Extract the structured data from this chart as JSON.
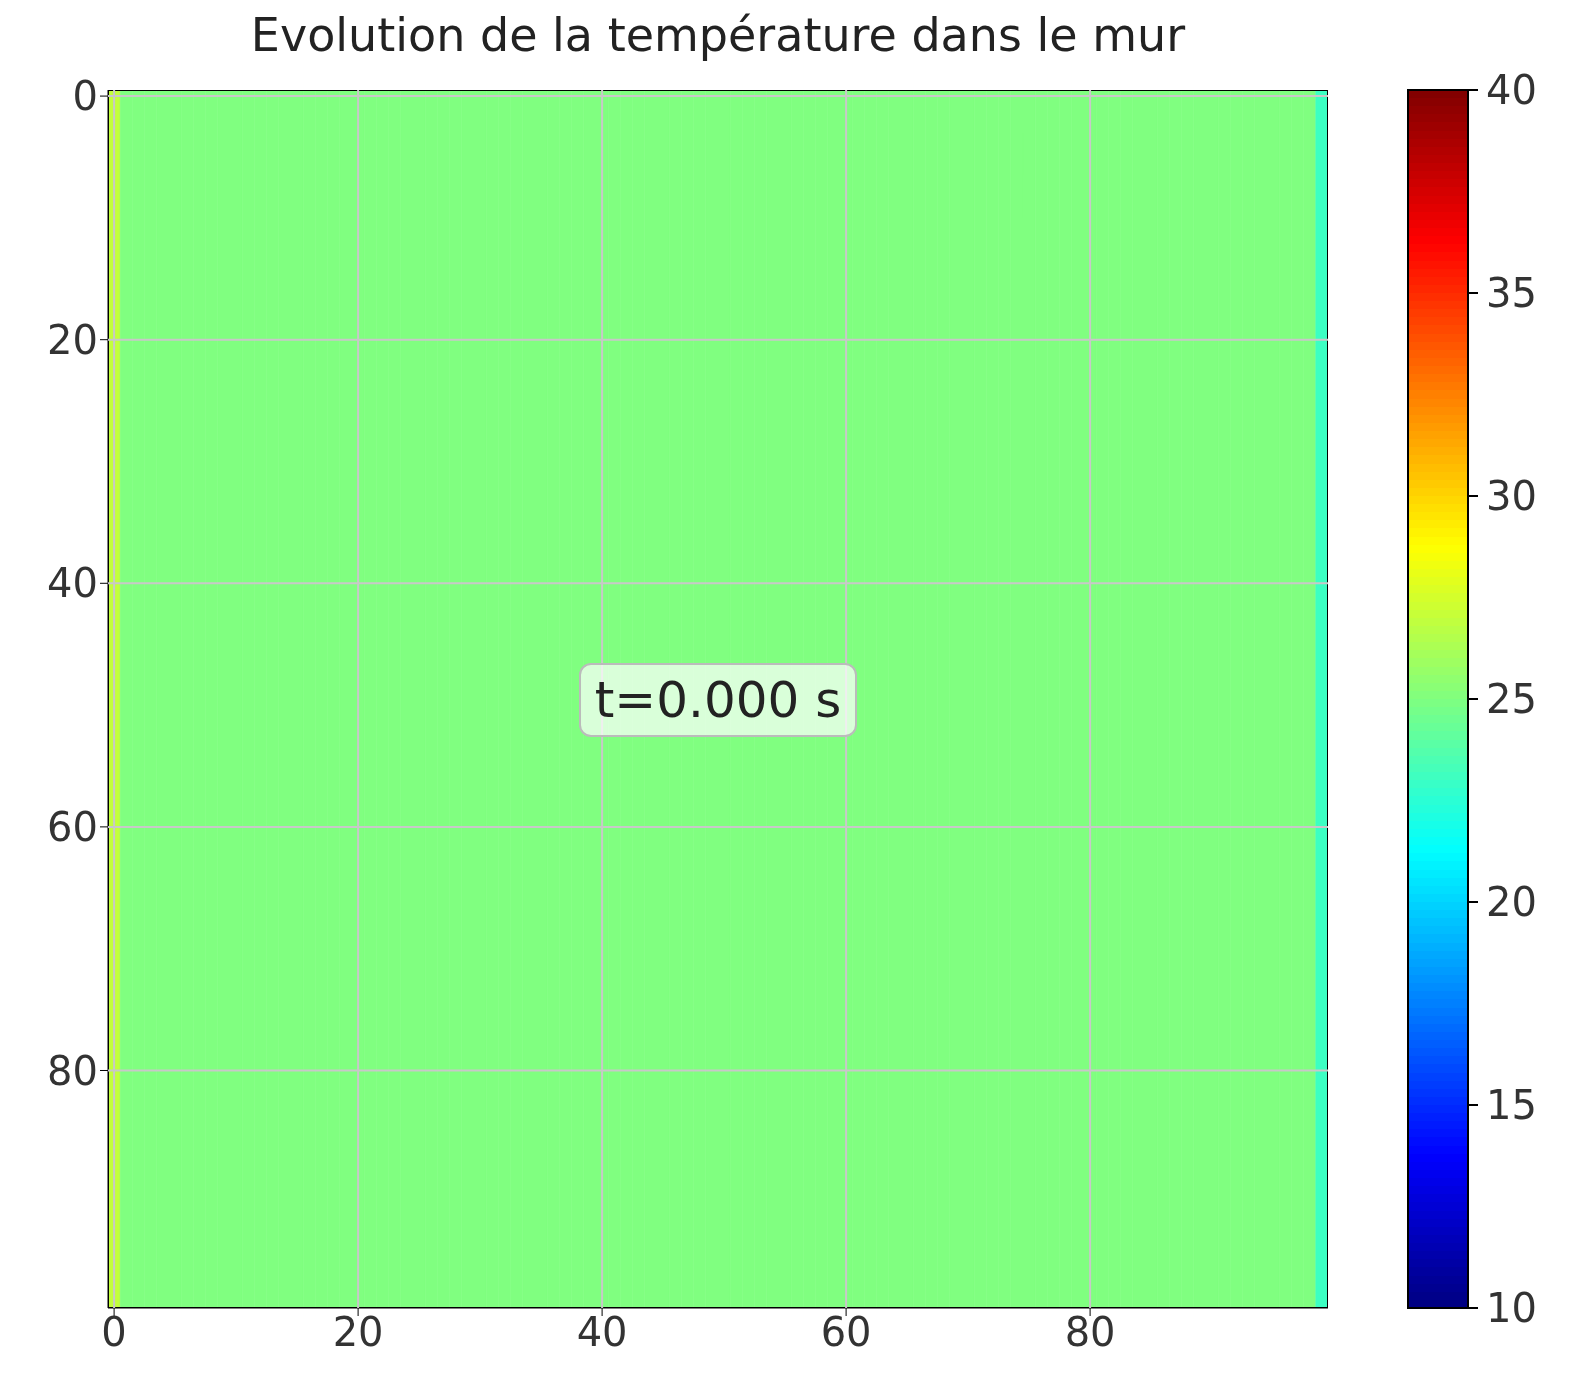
{
  "chart_data": {
    "type": "heatmap",
    "title": "Evolution de la température dans le mur",
    "x": [
      0,
      1,
      2,
      3,
      4,
      5,
      6,
      7,
      8,
      9,
      10,
      11,
      12,
      13,
      14,
      15,
      16,
      17,
      18,
      19,
      20,
      21,
      22,
      23,
      24,
      25,
      26,
      27,
      28,
      29,
      30,
      31,
      32,
      33,
      34,
      35,
      36,
      37,
      38,
      39,
      40,
      41,
      42,
      43,
      44,
      45,
      46,
      47,
      48,
      49,
      50,
      51,
      52,
      53,
      54,
      55,
      56,
      57,
      58,
      59,
      60,
      61,
      62,
      63,
      64,
      65,
      66,
      67,
      68,
      69,
      70,
      71,
      72,
      73,
      74,
      75,
      76,
      77,
      78,
      79,
      80,
      81,
      82,
      83,
      84,
      85,
      86,
      87,
      88,
      89,
      90,
      91,
      92,
      93,
      94,
      95,
      96,
      97,
      98,
      99
    ],
    "cells": [
      [
        27,
        25,
        25,
        25,
        25,
        25,
        25,
        25,
        25,
        25,
        25,
        25,
        25,
        25,
        25,
        25,
        25,
        25,
        25,
        25,
        25,
        25,
        25,
        25,
        25,
        25,
        25,
        25,
        25,
        25,
        25,
        25,
        25,
        25,
        25,
        25,
        25,
        25,
        25,
        25,
        25,
        25,
        25,
        25,
        25,
        25,
        25,
        25,
        25,
        25,
        25,
        25,
        25,
        25,
        25,
        25,
        25,
        25,
        25,
        25,
        25,
        25,
        25,
        25,
        25,
        25,
        25,
        25,
        25,
        25,
        25,
        25,
        25,
        25,
        25,
        25,
        25,
        25,
        25,
        25,
        25,
        25,
        25,
        25,
        25,
        25,
        25,
        25,
        25,
        25,
        25,
        25,
        25,
        25,
        25,
        25,
        25,
        25,
        25,
        23
      ]
    ],
    "xlim": [
      -0.5,
      99.5
    ],
    "xticks": [
      0,
      20,
      40,
      60,
      80
    ],
    "ylim": [
      99.5,
      -0.5
    ],
    "yticks": [
      0,
      20,
      40,
      60,
      80
    ],
    "clim": [
      10,
      40
    ],
    "cticks": [
      10,
      15,
      20,
      25,
      30,
      35,
      40
    ],
    "grid": true,
    "annotations": [
      "t=0.000 s"
    ]
  }
}
